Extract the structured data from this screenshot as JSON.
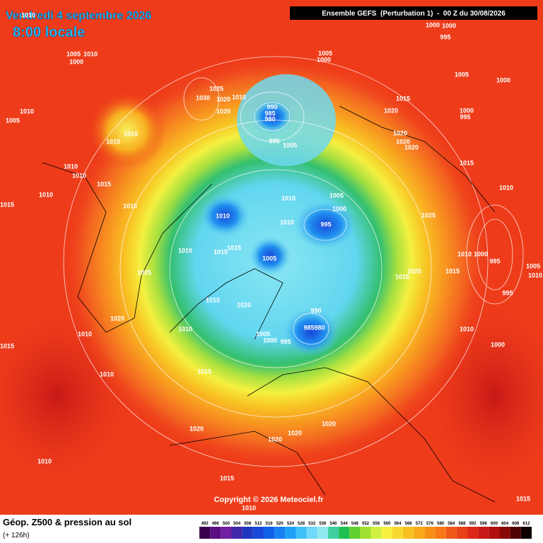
{
  "header": {
    "date": "Vendredi 4 septembre 2026",
    "time": "8:00 locale",
    "run": "Ensemble GEFS  (Perturbation 1)  -  00 Z du 30/08/2026"
  },
  "copyright": "Copyright © 2026 Meteociel.fr",
  "footer": {
    "title": "Géop. Z500 & pression au sol",
    "lead": "(+ 126h)"
  },
  "scale": {
    "values": [
      492,
      496,
      500,
      504,
      508,
      512,
      516,
      520,
      524,
      528,
      532,
      536,
      540,
      544,
      548,
      552,
      556,
      560,
      564,
      568,
      572,
      576,
      580,
      584,
      588,
      592,
      596,
      600,
      604,
      608,
      612
    ],
    "colors": [
      "#3a0050",
      "#5a1080",
      "#7020a0",
      "#4028a8",
      "#2038c0",
      "#1848d8",
      "#1060e8",
      "#1880f0",
      "#20a0f8",
      "#40c0f8",
      "#70d8f8",
      "#90e8f0",
      "#40d0a0",
      "#20c050",
      "#60d030",
      "#a0e030",
      "#d0f040",
      "#f8f040",
      "#f8d830",
      "#f8c020",
      "#f8a818",
      "#f89018",
      "#f87818",
      "#f05818",
      "#e84018",
      "#e02818",
      "#c81818",
      "#b01010",
      "#880808",
      "#500404",
      "#100000"
    ]
  },
  "isobar_labels": [
    "1010",
    "1005",
    "1010",
    "1000",
    "1010",
    "1005",
    "1010",
    "1015",
    "1010",
    "1010",
    "1015",
    "1010",
    "1015",
    "1010",
    "1025",
    "1030",
    "1020",
    "1010",
    "1020",
    "990",
    "985",
    "980",
    "995",
    "1005",
    "1005",
    "1000",
    "1000",
    "1000",
    "995",
    "1005",
    "1000",
    "1015",
    "1020",
    "1000",
    "995",
    "1020",
    "1020",
    "1020",
    "1015",
    "1010",
    "1005",
    "1000",
    "1015",
    "1010",
    "1010",
    "995",
    "1025",
    "1010",
    "1015",
    "1015",
    "1005",
    "1010",
    "1000",
    "995",
    "1005",
    "1010",
    "1025",
    "1020",
    "1015",
    "1015",
    "995",
    "1015",
    "1020",
    "990",
    "985",
    "980",
    "1010",
    "1020",
    "1010",
    "1005",
    "1000",
    "995",
    "1010",
    "1000",
    "1015",
    "1010",
    "1015",
    "1020",
    "1020",
    "1020",
    "1020",
    "1010",
    "1015",
    "1015",
    "1010"
  ]
}
